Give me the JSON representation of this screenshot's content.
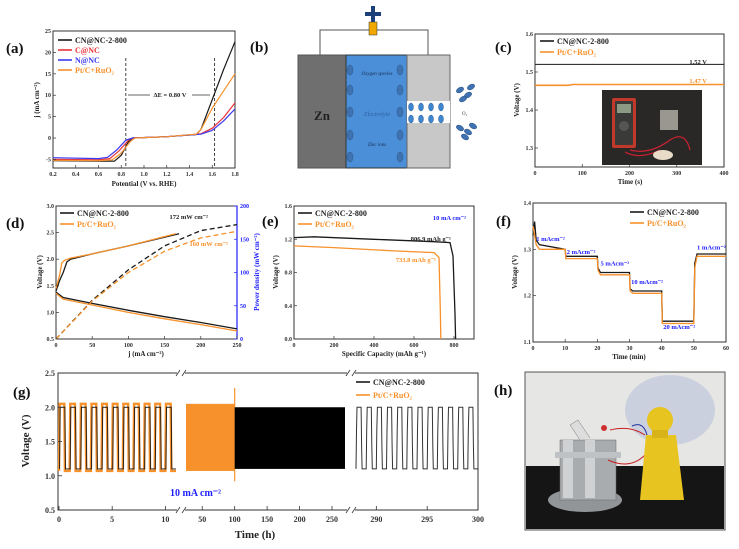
{
  "colors": {
    "black": "#1a1a1a",
    "red": "#e8333a",
    "blue": "#3a3af0",
    "orange": "#f7912b",
    "axis_blue": "#2020ff"
  },
  "panel_labels": [
    "(a)",
    "(b)",
    "(c)",
    "(d)",
    "(e)",
    "(f)",
    "(g)",
    "(h)"
  ],
  "diagram_b": {
    "anode": "Zn",
    "electrolyte": "Electrolyte",
    "oxygen_species": "Oxygen species",
    "zinc_ions": "Zinc ions",
    "o2": "O₂"
  },
  "photo_h": {
    "subject": "Zn-air battery powering a yellow handheld fan"
  },
  "chart_data": [
    {
      "id": "a",
      "type": "line",
      "xlabel": "Potential (V vs. RHE)",
      "ylabel": "j (mA cm⁻²)",
      "xlim": [
        0.2,
        1.8
      ],
      "ylim": [
        -7,
        25
      ],
      "xticks": [
        "0.2",
        "0.4",
        "0.6",
        "0.8",
        "1.0",
        "1.2",
        "1.4",
        "1.6",
        "1.8"
      ],
      "yticks": [
        "-5",
        "0",
        "5",
        "10",
        "15",
        "20",
        "25"
      ],
      "annotation": "ΔE = 0.80 V",
      "markers_x": [
        0.84,
        1.62
      ],
      "series": [
        {
          "name": "CN@NC-2-800",
          "color": "#1a1a1a",
          "x": [
            0.2,
            0.6,
            0.74,
            0.8,
            0.86,
            0.9,
            1.2,
            1.46,
            1.5,
            1.6,
            1.7,
            1.8
          ],
          "y": [
            -5.3,
            -5.4,
            -5.4,
            -4.0,
            -1.0,
            0,
            0.3,
            0.8,
            2,
            9,
            16,
            22.5
          ]
        },
        {
          "name": "C@NC",
          "color": "#e8333a",
          "x": [
            0.2,
            0.6,
            0.7,
            0.78,
            0.86,
            0.9,
            1.2,
            1.5,
            1.6,
            1.7,
            1.8
          ],
          "y": [
            -5.0,
            -5.1,
            -4.8,
            -3.0,
            -0.6,
            0,
            0.3,
            1.0,
            2.3,
            4.8,
            8.2
          ]
        },
        {
          "name": "N@NC",
          "color": "#3a3af0",
          "x": [
            0.2,
            0.6,
            0.68,
            0.76,
            0.84,
            0.9,
            1.2,
            1.5,
            1.6,
            1.7,
            1.8
          ],
          "y": [
            -4.6,
            -4.8,
            -4.5,
            -2.8,
            -0.5,
            0,
            0.3,
            0.9,
            1.8,
            4,
            6.8
          ]
        },
        {
          "name": "Pt/C+RuO₂",
          "color": "#f7912b",
          "x": [
            0.2,
            0.6,
            0.72,
            0.8,
            0.88,
            0.92,
            1.2,
            1.46,
            1.5,
            1.6,
            1.7,
            1.8
          ],
          "y": [
            -5.2,
            -5.3,
            -5.1,
            -3.5,
            -0.8,
            0,
            0.3,
            0.9,
            2,
            7,
            11,
            15
          ]
        }
      ]
    },
    {
      "id": "c",
      "type": "line",
      "xlabel": "Time (s)",
      "ylabel": "Voltage (V)",
      "xlim": [
        0,
        400
      ],
      "ylim": [
        1.25,
        1.6
      ],
      "xticks": [
        "0",
        "100",
        "200",
        "300",
        "400"
      ],
      "yticks": [
        "1.3",
        "1.4",
        "1.5",
        "1.6"
      ],
      "series": [
        {
          "name": "CN@NC-2-800",
          "color": "#1a1a1a",
          "x": [
            0,
            400
          ],
          "y": [
            1.52,
            1.52
          ],
          "label": "1.52 V"
        },
        {
          "name": "Pt/C+RuO₂",
          "color": "#f7912b",
          "x": [
            0,
            70,
            80,
            400
          ],
          "y": [
            1.465,
            1.465,
            1.467,
            1.467
          ],
          "label": "1.47 V"
        }
      ]
    },
    {
      "id": "d",
      "type": "line",
      "xlabel": "j (mA cm⁻²)",
      "ylabel": "Voltage (V)",
      "y2label": "Power density (mW cm⁻²)",
      "xlim": [
        0,
        250
      ],
      "ylim": [
        0.5,
        3.0
      ],
      "y2lim": [
        0,
        200
      ],
      "xticks": [
        "0",
        "50",
        "100",
        "150",
        "200",
        "250"
      ],
      "yticks": [
        "0.5",
        "1.0",
        "1.5",
        "2.0",
        "2.5",
        "3.0"
      ],
      "y2ticks": [
        "0",
        "50",
        "100",
        "150",
        "200"
      ],
      "annotations": [
        "172 mW cm⁻²",
        "160 mW cm⁻²"
      ],
      "series": [
        {
          "name": "CN@NC-2-800",
          "color": "#1a1a1a",
          "kind": "charge",
          "x": [
            0,
            5,
            10,
            15,
            20,
            50,
            100,
            170
          ],
          "y": [
            1.4,
            1.6,
            1.75,
            1.95,
            2.0,
            2.1,
            2.25,
            2.48
          ]
        },
        {
          "name": "Pt/C+RuO₂",
          "color": "#f7912b",
          "kind": "charge",
          "x": [
            0,
            5,
            8,
            12,
            20,
            50,
            100,
            165
          ],
          "y": [
            1.45,
            1.7,
            1.93,
            1.98,
            2.02,
            2.1,
            2.25,
            2.48
          ]
        },
        {
          "name": "CN@NC-2-800",
          "color": "#1a1a1a",
          "kind": "discharge",
          "x": [
            0,
            10,
            50,
            100,
            150,
            200,
            250
          ],
          "y": [
            1.38,
            1.28,
            1.17,
            1.04,
            0.92,
            0.81,
            0.69
          ]
        },
        {
          "name": "Pt/C+RuO₂",
          "color": "#f7912b",
          "kind": "discharge",
          "x": [
            0,
            10,
            50,
            100,
            150,
            200,
            250
          ],
          "y": [
            1.36,
            1.25,
            1.14,
            1.0,
            0.88,
            0.77,
            0.65
          ]
        },
        {
          "name": "CN@NC-2-800",
          "color": "#1a1a1a",
          "kind": "power",
          "x": [
            0,
            50,
            100,
            150,
            200,
            250
          ],
          "y": [
            0,
            58,
            104,
            140,
            163,
            172
          ]
        },
        {
          "name": "Pt/C+RuO₂",
          "color": "#f7912b",
          "kind": "power",
          "x": [
            0,
            50,
            100,
            150,
            200,
            250
          ],
          "y": [
            0,
            57,
            100,
            132,
            152,
            162
          ]
        }
      ]
    },
    {
      "id": "e",
      "type": "line",
      "xlabel": "Specific Capacity (mAh g⁻¹)",
      "ylabel": "Voltage (V)",
      "xlim": [
        0,
        900
      ],
      "ylim": [
        0,
        1.6
      ],
      "xticks": [
        "0",
        "200",
        "400",
        "600",
        "800"
      ],
      "yticks": [
        "0.0",
        "0.4",
        "0.8",
        "1.2",
        "1.6"
      ],
      "condition": "10 mA cm⁻²",
      "series": [
        {
          "name": "CN@NC-2-800",
          "color": "#1a1a1a",
          "x": [
            0,
            100,
            400,
            700,
            780,
            795,
            805,
            808
          ],
          "y": [
            1.22,
            1.23,
            1.2,
            1.17,
            1.16,
            1.0,
            0.3,
            0
          ],
          "label": "806.9 mAh g⁻¹"
        },
        {
          "name": "Pt/C+RuO₂",
          "color": "#f7912b",
          "x": [
            0,
            200,
            500,
            700,
            725,
            732,
            734
          ],
          "y": [
            1.12,
            1.1,
            1.06,
            1.04,
            0.98,
            0.3,
            0
          ],
          "label": "733.8 mAh g⁻¹"
        }
      ]
    },
    {
      "id": "f",
      "type": "line",
      "xlabel": "Time (min)",
      "ylabel": "Voltage (V)",
      "xlim": [
        0,
        60
      ],
      "ylim": [
        1.1,
        1.4
      ],
      "xticks": [
        "0",
        "10",
        "20",
        "30",
        "40",
        "50",
        "60"
      ],
      "yticks": [
        "1.1",
        "1.2",
        "1.3",
        "1.4"
      ],
      "step_labels": [
        "1 mAcm⁻²",
        "2 mAcm⁻²",
        "5 mAcm⁻²",
        "10 mAcm⁻²",
        "20 mAcm⁻²",
        "1 mAcm⁻²"
      ],
      "series": [
        {
          "name": "CN@NC-2-800",
          "color": "#1a1a1a",
          "x": [
            0,
            0.5,
            1,
            2,
            10,
            10.2,
            20,
            20.2,
            21,
            30,
            30.2,
            31,
            40,
            40.2,
            50,
            50.3,
            51,
            60
          ],
          "y": [
            1.33,
            1.36,
            1.32,
            1.31,
            1.3,
            1.285,
            1.285,
            1.26,
            1.25,
            1.25,
            1.215,
            1.21,
            1.21,
            1.145,
            1.145,
            1.27,
            1.29,
            1.29
          ]
        },
        {
          "name": "Pt/C+RuO₂",
          "color": "#f7912b",
          "x": [
            0,
            0.5,
            1,
            2,
            10,
            10.2,
            20,
            20.2,
            21,
            30,
            30.2,
            31,
            40,
            40.2,
            50,
            50.3,
            51,
            60
          ],
          "y": [
            1.35,
            1.33,
            1.31,
            1.3,
            1.3,
            1.28,
            1.28,
            1.255,
            1.245,
            1.245,
            1.21,
            1.205,
            1.205,
            1.14,
            1.14,
            1.26,
            1.285,
            1.285
          ]
        }
      ]
    },
    {
      "id": "g",
      "type": "line",
      "xlabel": "Time (h)",
      "ylabel": "Voltage (V)",
      "ylim": [
        0.5,
        2.5
      ],
      "yticks": [
        "0.5",
        "1.0",
        "1.5",
        "2.0",
        "2.5"
      ],
      "xticks_seg1": [
        "0",
        "5",
        "10"
      ],
      "xticks_seg2": [
        "50",
        "100",
        "150",
        "200",
        "250"
      ],
      "xticks_seg3": [
        "290",
        "295",
        "300"
      ],
      "segments": [
        [
          0,
          11
        ],
        [
          25,
          270
        ],
        [
          288,
          300
        ]
      ],
      "condition": "10 mA cm⁻²",
      "series": [
        {
          "name": "CN@NC-2-800",
          "color": "#1a1a1a",
          "charge_v": 2.0,
          "discharge_v": 1.1,
          "end_h": 300
        },
        {
          "name": "Pt/C+RuO₂",
          "color": "#f7912b",
          "charge_v": 2.05,
          "discharge_v": 1.07,
          "end_h": 100
        }
      ]
    }
  ]
}
